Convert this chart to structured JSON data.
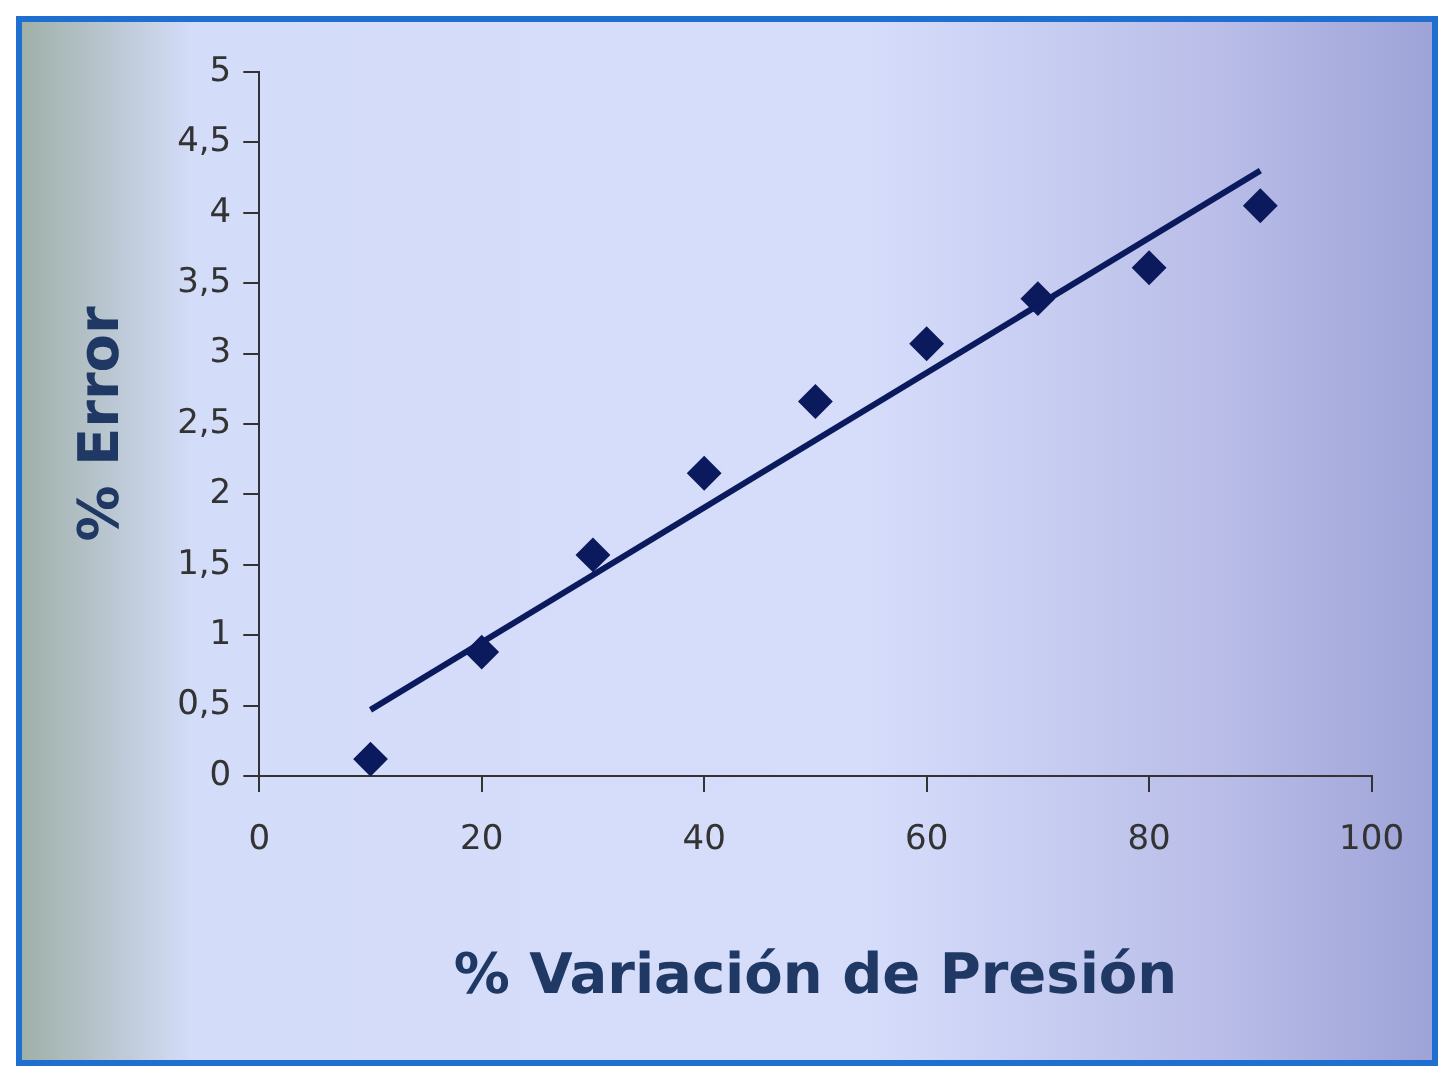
{
  "chart_data": {
    "type": "scatter",
    "xlabel": "% Variación de Presión",
    "ylabel": "% Error",
    "marker": "diamond",
    "grid": false,
    "legend": false,
    "x": [
      10,
      20,
      30,
      40,
      50,
      60,
      70,
      80,
      90
    ],
    "series": [
      {
        "type": "scatter",
        "color": "#0a1a5c",
        "values": [
          0.12,
          0.88,
          1.57,
          2.15,
          2.66,
          3.07,
          3.39,
          3.61,
          4.05
        ]
      },
      {
        "type": "line",
        "color": "#0a1a5c",
        "x": [
          10,
          90
        ],
        "values": [
          0.47,
          4.3
        ],
        "marker": "none",
        "line_style": "solid"
      }
    ],
    "xlim": [
      0,
      100
    ],
    "xticks": [
      0,
      20,
      40,
      60,
      80,
      100
    ],
    "ylim": [
      0,
      5
    ],
    "yticks": [
      0,
      {
        "value": 0.5,
        "label": "0,5"
      },
      1,
      {
        "value": 1.5,
        "label": "1,5"
      },
      2,
      {
        "value": 2.5,
        "label": "2,5"
      },
      3,
      {
        "value": 3.5,
        "label": "3,5"
      },
      4,
      {
        "value": 4.5,
        "label": "4,5"
      },
      5
    ]
  }
}
